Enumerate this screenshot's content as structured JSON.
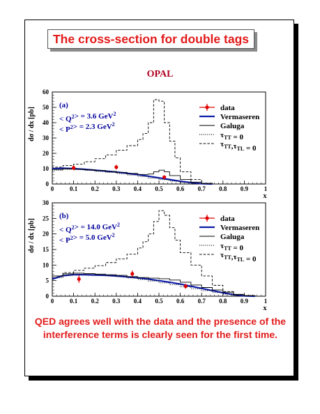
{
  "slide": {
    "title": "The cross-section for double tags",
    "experiment": "OPAL",
    "conclusion": "QED agrees well with the data and the presence of the interference terms is clearly seen for the first time."
  },
  "colors": {
    "title_red": "#e21b1b",
    "data_red": "#e00000",
    "vermaseren_blue": "#0a1aa8",
    "panel_text_blue": "#00009a"
  },
  "chart_data": [
    {
      "type": "line",
      "panel": "(a)",
      "annotations": [
        "< Q²> = 3.6 GeV²",
        "< P²> = 2.3 GeV²"
      ],
      "xlabel": "x",
      "ylabel": "dσ / dx [pb]",
      "xlim": [
        0,
        1
      ],
      "ylim": [
        0,
        60
      ],
      "x_ticks": [
        0,
        0.1,
        0.2,
        0.3,
        0.4,
        0.5,
        0.6,
        0.7,
        0.8,
        0.9,
        1
      ],
      "x_tick_labels": [
        "0",
        "0.1",
        "0.2",
        "0.3",
        "0.4",
        "0.5",
        "0.6",
        "0.7",
        "0.8",
        "0.9",
        "1"
      ],
      "y_ticks": [
        0,
        10,
        20,
        30,
        40,
        50,
        60
      ],
      "y_tick_labels": [
        "0",
        "10",
        "20",
        "30",
        "40",
        "50",
        "60"
      ],
      "legend": [
        "data",
        "Vermaseren",
        "Galuga",
        "τTT = 0",
        "τTT,τTL = 0"
      ],
      "legend_position": "top-right",
      "data": {
        "name": "data",
        "x": [
          0.1,
          0.3,
          0.525
        ],
        "y": [
          10.5,
          11,
          4.5
        ],
        "yerr": [
          1.5,
          1.5,
          1
        ]
      },
      "series": [
        {
          "name": "Vermaseren",
          "style": "curve",
          "x": [
            0,
            0.05,
            0.1,
            0.15,
            0.2,
            0.25,
            0.3,
            0.35,
            0.4,
            0.45,
            0.5,
            0.55,
            0.6,
            0.65,
            0.7,
            0.75
          ],
          "values": [
            10,
            10.3,
            10,
            9.6,
            9,
            8.4,
            7.8,
            7,
            6.1,
            5.1,
            4,
            2.9,
            1.8,
            0.9,
            0.2,
            0
          ]
        },
        {
          "name": "Galuga",
          "style": "histogram",
          "bin_edges": [
            0,
            0.05,
            0.1,
            0.15,
            0.2,
            0.25,
            0.3,
            0.35,
            0.4,
            0.45,
            0.475,
            0.5,
            0.525,
            0.55,
            0.6,
            0.65,
            0.7,
            0.75
          ],
          "values": [
            9.5,
            10,
            9.7,
            9.3,
            8.8,
            8.2,
            7.6,
            6.9,
            6.2,
            6.5,
            8,
            9,
            8,
            5.5,
            3,
            1.2,
            0.3
          ]
        },
        {
          "name": "τTT = 0",
          "style": "histogram",
          "bin_edges": [
            0,
            0.05,
            0.1,
            0.15,
            0.2,
            0.25,
            0.3,
            0.35,
            0.4,
            0.45,
            0.5,
            0.55,
            0.6,
            0.65,
            0.7,
            0.75
          ],
          "values": [
            9,
            9.6,
            9.4,
            8.9,
            8.3,
            7.6,
            6.8,
            5.9,
            4.9,
            3.8,
            2.8,
            1.9,
            1.1,
            0.5,
            0.1
          ]
        },
        {
          "name": "τTT,τTL = 0",
          "style": "histogram",
          "bin_edges": [
            0,
            0.05,
            0.1,
            0.15,
            0.2,
            0.25,
            0.3,
            0.35,
            0.4,
            0.425,
            0.45,
            0.475,
            0.5,
            0.525,
            0.55,
            0.575,
            0.6,
            0.65,
            0.7,
            0.75
          ],
          "values": [
            11,
            12,
            13,
            14.5,
            16.5,
            19,
            22,
            25,
            29,
            33,
            40,
            55,
            54,
            40,
            28,
            17,
            8,
            3,
            0.5
          ]
        }
      ]
    },
    {
      "type": "line",
      "panel": "(b)",
      "annotations": [
        "< Q²> = 14.0 GeV²",
        "< P²> =  5.0 GeV²"
      ],
      "xlabel": "x",
      "ylabel": "dσ / dx [pb]",
      "xlim": [
        0,
        1
      ],
      "ylim": [
        0,
        30
      ],
      "x_ticks": [
        0,
        0.1,
        0.2,
        0.3,
        0.4,
        0.5,
        0.6,
        0.7,
        0.8,
        0.9,
        1
      ],
      "x_tick_labels": [
        "0",
        "0.1",
        "0.2",
        "0.3",
        "0.4",
        "0.5",
        "0.6",
        "0.7",
        "0.8",
        "0.9",
        "1"
      ],
      "y_ticks": [
        0,
        5,
        10,
        15,
        20,
        25,
        30
      ],
      "y_tick_labels": [
        "0",
        "5",
        "10",
        "15",
        "20",
        "25",
        "30"
      ],
      "legend": [
        "data",
        "Vermaseren",
        "Galuga",
        "τTT = 0",
        "τTT,τTL = 0"
      ],
      "legend_position": "top-right",
      "data": {
        "name": "data",
        "x": [
          0.125,
          0.375,
          0.625
        ],
        "y": [
          5.5,
          7.2,
          3.2
        ],
        "yerr": [
          1.2,
          1.0,
          0.8
        ]
      },
      "series": [
        {
          "name": "Vermaseren",
          "style": "curve",
          "x": [
            0,
            0.05,
            0.1,
            0.15,
            0.2,
            0.25,
            0.3,
            0.35,
            0.4,
            0.45,
            0.5,
            0.55,
            0.6,
            0.65,
            0.7,
            0.75,
            0.8,
            0.85,
            0.9,
            0.95
          ],
          "values": [
            5.5,
            6.6,
            6.9,
            6.9,
            6.8,
            6.7,
            6.5,
            6.2,
            5.9,
            5.5,
            5,
            4.5,
            3.9,
            3.2,
            2.5,
            1.8,
            1.1,
            0.5,
            0.1,
            0
          ]
        },
        {
          "name": "Galuga",
          "style": "histogram",
          "bin_edges": [
            0,
            0.05,
            0.1,
            0.15,
            0.2,
            0.25,
            0.3,
            0.35,
            0.4,
            0.45,
            0.5,
            0.55,
            0.6,
            0.65,
            0.7,
            0.75,
            0.8,
            0.85,
            0.9,
            0.95
          ],
          "values": [
            6.5,
            7.2,
            7.4,
            7.3,
            7.1,
            6.9,
            6.7,
            6.3,
            6,
            5.8,
            5.6,
            5.2,
            4.5,
            3.6,
            2.8,
            2,
            1.3,
            0.6,
            0.2
          ]
        },
        {
          "name": "τTT = 0",
          "style": "histogram",
          "bin_edges": [
            0,
            0.05,
            0.1,
            0.15,
            0.2,
            0.25,
            0.3,
            0.35,
            0.4,
            0.45,
            0.5,
            0.55,
            0.6,
            0.65,
            0.7,
            0.75,
            0.8,
            0.85,
            0.9,
            0.95
          ],
          "values": [
            6,
            6.8,
            7.1,
            7,
            6.8,
            6.6,
            6.3,
            5.9,
            5.4,
            4.9,
            4.3,
            3.7,
            3,
            2.4,
            1.8,
            1.2,
            0.7,
            0.3,
            0.1
          ]
        },
        {
          "name": "τTT,τTL = 0",
          "style": "histogram",
          "bin_edges": [
            0,
            0.05,
            0.1,
            0.15,
            0.2,
            0.25,
            0.3,
            0.35,
            0.4,
            0.425,
            0.45,
            0.475,
            0.5,
            0.525,
            0.55,
            0.575,
            0.6,
            0.65,
            0.7,
            0.75,
            0.8,
            0.85,
            0.9,
            0.95
          ],
          "values": [
            6.5,
            7.6,
            8.3,
            9,
            9.8,
            10.8,
            12,
            13.5,
            15.5,
            17.5,
            20,
            24,
            27.5,
            26,
            22,
            18,
            14,
            10,
            6.5,
            3.5,
            1.5,
            0.5,
            0.1
          ]
        }
      ]
    }
  ]
}
